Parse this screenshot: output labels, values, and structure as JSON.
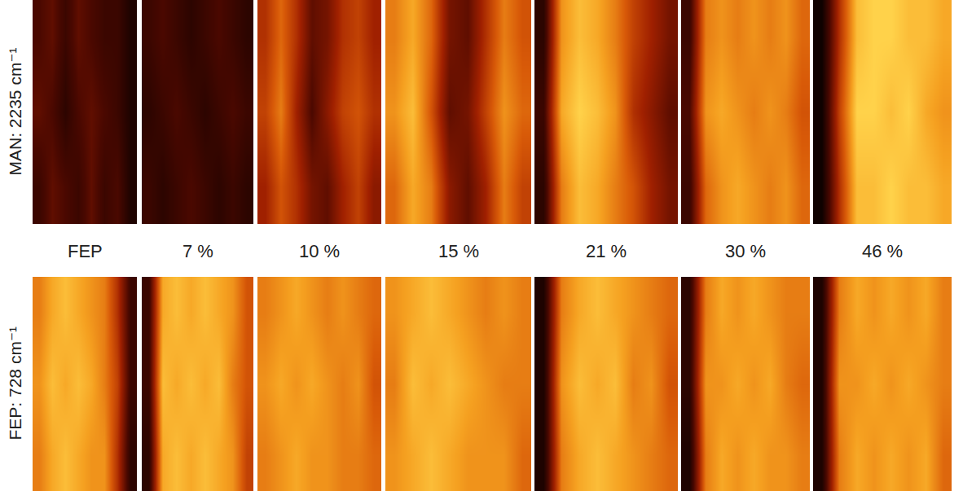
{
  "chart_data": {
    "type": "heatmap",
    "tick_labels": false,
    "zlim": [
      0,
      1
    ],
    "columns": [
      "FEP",
      "7 %",
      "10 %",
      "15 %",
      "21 %",
      "30 %",
      "46 %"
    ],
    "rows": [
      {
        "label": "MAN: 2235 cm⁻¹",
        "cells": [
          [
            [
              0.25,
              0.3,
              0.2,
              0.3,
              0.25,
              0.2,
              0.2,
              0.1
            ],
            [
              0.3,
              0.25,
              0.15,
              0.25,
              0.3,
              0.25,
              0.2,
              0.1
            ],
            [
              0.2,
              0.3,
              0.25,
              0.2,
              0.3,
              0.2,
              0.25,
              0.1
            ]
          ],
          [
            [
              0.2,
              0.25,
              0.2,
              0.15,
              0.2,
              0.25,
              0.2,
              0.15
            ],
            [
              0.15,
              0.2,
              0.25,
              0.2,
              0.15,
              0.2,
              0.25,
              0.2
            ],
            [
              0.2,
              0.15,
              0.2,
              0.25,
              0.2,
              0.15,
              0.2,
              0.15
            ]
          ],
          [
            [
              0.5,
              0.65,
              0.5,
              0.3,
              0.35,
              0.5,
              0.55,
              0.45
            ],
            [
              0.55,
              0.7,
              0.45,
              0.25,
              0.4,
              0.55,
              0.6,
              0.5
            ],
            [
              0.45,
              0.6,
              0.5,
              0.35,
              0.3,
              0.45,
              0.55,
              0.4
            ]
          ],
          [
            [
              0.7,
              0.8,
              0.65,
              0.35,
              0.3,
              0.5,
              0.7,
              0.6
            ],
            [
              0.75,
              0.85,
              0.6,
              0.3,
              0.35,
              0.55,
              0.75,
              0.65
            ],
            [
              0.65,
              0.8,
              0.7,
              0.4,
              0.3,
              0.45,
              0.7,
              0.55
            ]
          ],
          [
            [
              0.15,
              0.75,
              0.85,
              0.8,
              0.7,
              0.55,
              0.45,
              0.35
            ],
            [
              0.2,
              0.8,
              0.9,
              0.85,
              0.75,
              0.5,
              0.4,
              0.3
            ],
            [
              0.15,
              0.7,
              0.85,
              0.8,
              0.7,
              0.6,
              0.45,
              0.35
            ]
          ],
          [
            [
              0.2,
              0.7,
              0.75,
              0.7,
              0.75,
              0.7,
              0.75,
              0.65
            ],
            [
              0.25,
              0.75,
              0.8,
              0.75,
              0.7,
              0.75,
              0.7,
              0.6
            ],
            [
              0.2,
              0.65,
              0.75,
              0.8,
              0.75,
              0.7,
              0.75,
              0.65
            ]
          ],
          [
            [
              0.05,
              0.5,
              0.85,
              0.9,
              0.9,
              0.85,
              0.85,
              0.8
            ],
            [
              0.05,
              0.55,
              0.9,
              0.9,
              0.85,
              0.9,
              0.8,
              0.75
            ],
            [
              0.05,
              0.5,
              0.85,
              0.85,
              0.9,
              0.85,
              0.85,
              0.8
            ]
          ]
        ]
      },
      {
        "label": "FEP: 728 cm⁻¹",
        "cells": [
          [
            [
              0.7,
              0.8,
              0.85,
              0.8,
              0.75,
              0.7,
              0.5,
              0.2
            ],
            [
              0.75,
              0.85,
              0.8,
              0.85,
              0.8,
              0.7,
              0.55,
              0.2
            ],
            [
              0.7,
              0.8,
              0.85,
              0.8,
              0.75,
              0.75,
              0.5,
              0.15
            ]
          ],
          [
            [
              0.2,
              0.8,
              0.85,
              0.8,
              0.85,
              0.8,
              0.75,
              0.6
            ],
            [
              0.2,
              0.85,
              0.8,
              0.85,
              0.8,
              0.85,
              0.7,
              0.6
            ],
            [
              0.15,
              0.8,
              0.85,
              0.8,
              0.85,
              0.8,
              0.75,
              0.55
            ]
          ],
          [
            [
              0.7,
              0.75,
              0.8,
              0.75,
              0.7,
              0.75,
              0.7,
              0.65
            ],
            [
              0.75,
              0.8,
              0.75,
              0.8,
              0.75,
              0.7,
              0.75,
              0.6
            ],
            [
              0.7,
              0.75,
              0.8,
              0.75,
              0.75,
              0.7,
              0.7,
              0.65
            ]
          ],
          [
            [
              0.75,
              0.8,
              0.85,
              0.8,
              0.75,
              0.7,
              0.75,
              0.7
            ],
            [
              0.7,
              0.85,
              0.8,
              0.85,
              0.8,
              0.75,
              0.7,
              0.7
            ],
            [
              0.75,
              0.8,
              0.85,
              0.8,
              0.75,
              0.75,
              0.75,
              0.65
            ]
          ],
          [
            [
              0.1,
              0.7,
              0.8,
              0.85,
              0.8,
              0.75,
              0.7,
              0.65
            ],
            [
              0.1,
              0.75,
              0.85,
              0.8,
              0.85,
              0.7,
              0.75,
              0.6
            ],
            [
              0.1,
              0.7,
              0.8,
              0.85,
              0.8,
              0.75,
              0.7,
              0.65
            ]
          ],
          [
            [
              0.15,
              0.7,
              0.8,
              0.75,
              0.8,
              0.75,
              0.7,
              0.7
            ],
            [
              0.15,
              0.75,
              0.75,
              0.8,
              0.75,
              0.8,
              0.7,
              0.65
            ],
            [
              0.1,
              0.7,
              0.8,
              0.75,
              0.8,
              0.75,
              0.75,
              0.7
            ]
          ],
          [
            [
              0.1,
              0.7,
              0.8,
              0.75,
              0.8,
              0.75,
              0.8,
              0.7
            ],
            [
              0.1,
              0.75,
              0.75,
              0.8,
              0.75,
              0.8,
              0.75,
              0.7
            ],
            [
              0.1,
              0.7,
              0.8,
              0.75,
              0.8,
              0.75,
              0.8,
              0.65
            ]
          ]
        ]
      }
    ]
  }
}
